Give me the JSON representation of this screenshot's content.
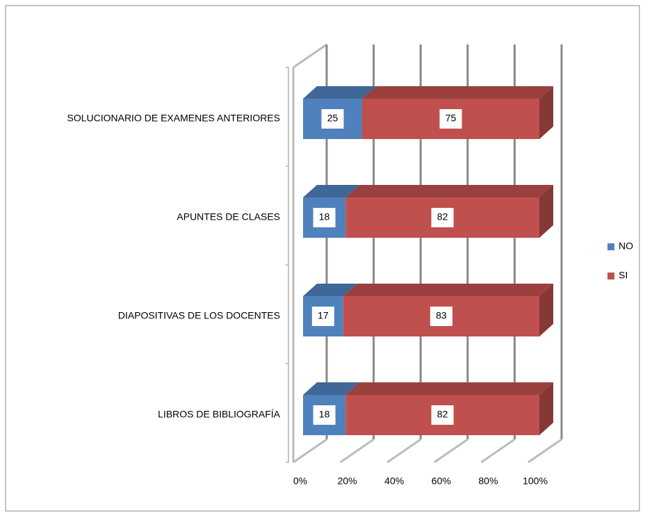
{
  "chart_data": {
    "type": "bar",
    "orientation": "horizontal",
    "stacked": "percent",
    "categories": [
      "SOLUCIONARIO DE EXAMENES ANTERIORES",
      "APUNTES DE CLASES",
      "DIAPOSITIVAS DE LOS DOCENTES",
      "LIBROS DE BIBLIOGRAFÍA"
    ],
    "series": [
      {
        "name": "NO",
        "color": "#4f81bd",
        "values": [
          25,
          18,
          17,
          18
        ]
      },
      {
        "name": "SI",
        "color": "#c0504d",
        "values": [
          75,
          82,
          83,
          82
        ]
      }
    ],
    "xlim": [
      0,
      100
    ],
    "xticks": [
      {
        "value": 0,
        "label": "0%"
      },
      {
        "value": 20,
        "label": "20%"
      },
      {
        "value": 40,
        "label": "40%"
      },
      {
        "value": 60,
        "label": "60%"
      },
      {
        "value": 80,
        "label": "80%"
      },
      {
        "value": 100,
        "label": "100%"
      }
    ],
    "grid": true,
    "legend": "right"
  }
}
